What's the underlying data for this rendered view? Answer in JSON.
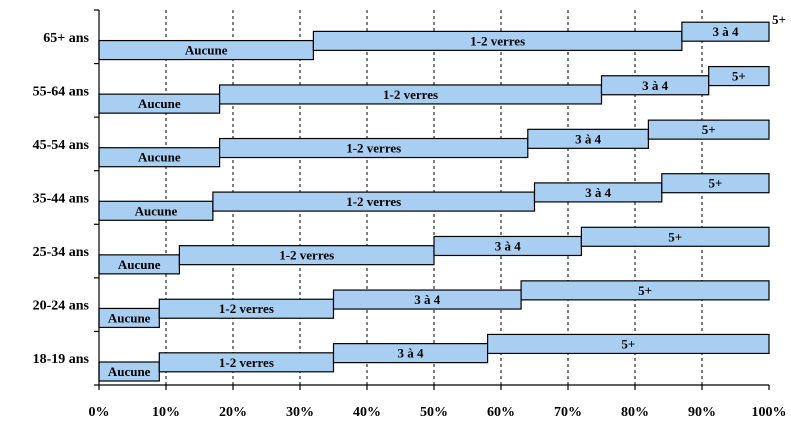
{
  "chart_data": {
    "type": "bar",
    "orientation": "horizontal-stacked-staircase",
    "categories": [
      "65+ ans",
      "55-64 ans",
      "45-54 ans",
      "35-44 ans",
      "25-34 ans",
      "20-24 ans",
      "18-19 ans"
    ],
    "series": [
      {
        "name": "Aucune",
        "values": [
          32,
          18,
          18,
          17,
          12,
          9,
          9
        ]
      },
      {
        "name": "1-2 verres",
        "values": [
          55,
          57,
          46,
          48,
          38,
          26,
          26
        ]
      },
      {
        "name": "3 à 4",
        "values": [
          13,
          16,
          18,
          19,
          22,
          28,
          23
        ]
      },
      {
        "name": "5+",
        "values": [
          0,
          9,
          18,
          16,
          28,
          37,
          42
        ]
      }
    ],
    "xlim": [
      0,
      100
    ],
    "xticks": [
      "0%",
      "10%",
      "20%",
      "30%",
      "40%",
      "50%",
      "60%",
      "70%",
      "80%",
      "90%",
      "100%"
    ],
    "grid": "vertical-dashed",
    "colors": {
      "bar_fill": "#a8cff2",
      "bar_stroke": "#000000"
    }
  }
}
